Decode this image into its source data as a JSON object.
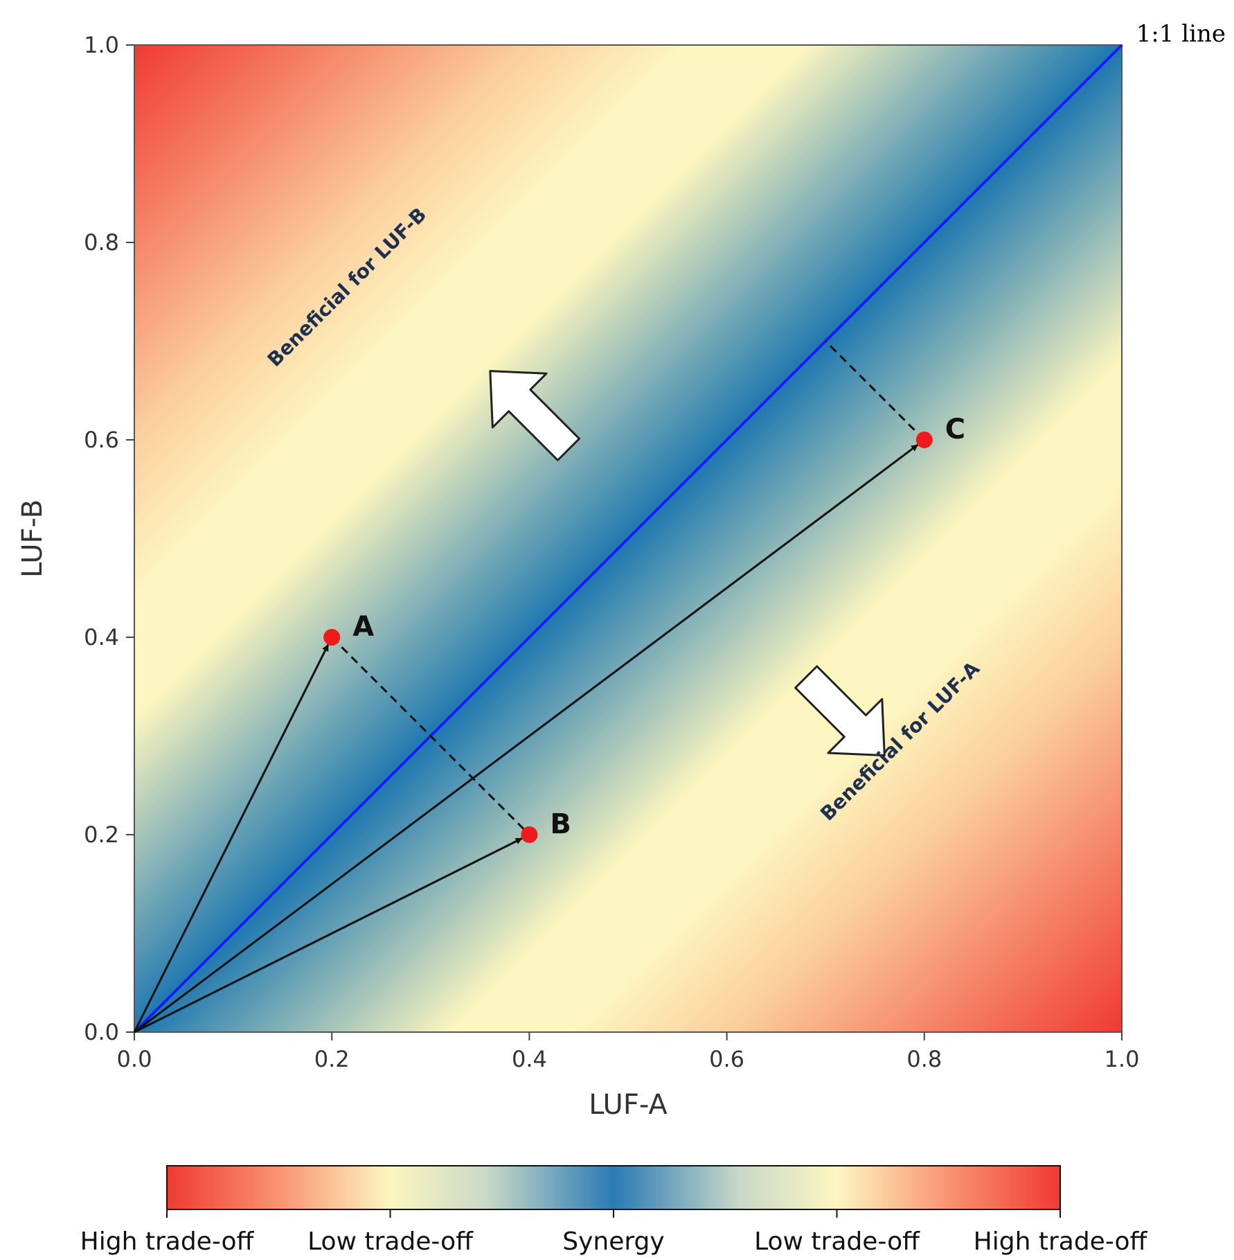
{
  "chart_data": {
    "type": "scatter",
    "xlabel": "LUF-A",
    "ylabel": "LUF-B",
    "xlim": [
      0.0,
      1.0
    ],
    "ylim": [
      0.0,
      1.0
    ],
    "xticks": [
      "0.0",
      "0.2",
      "0.4",
      "0.6",
      "0.8",
      "1.0"
    ],
    "yticks": [
      "0.0",
      "0.2",
      "0.4",
      "0.6",
      "0.8",
      "1.0"
    ],
    "xtick_values": [
      0.0,
      0.2,
      0.4,
      0.6,
      0.8,
      1.0
    ],
    "ytick_values": [
      0.0,
      0.2,
      0.4,
      0.6,
      0.8,
      1.0
    ],
    "points": [
      {
        "label": "A",
        "x": 0.2,
        "y": 0.4
      },
      {
        "label": "B",
        "x": 0.4,
        "y": 0.2
      },
      {
        "label": "C",
        "x": 0.8,
        "y": 0.6
      }
    ],
    "reference_line": {
      "label": "1:1 line",
      "from": [
        0.0,
        0.0
      ],
      "to": [
        1.0,
        1.0
      ],
      "color": "#1a1aff"
    },
    "arrows_from_origin": [
      "A",
      "B",
      "C"
    ],
    "dashed_links": [
      {
        "from": [
          0.2,
          0.4
        ],
        "to": [
          0.4,
          0.2
        ]
      },
      {
        "from": [
          0.8,
          0.6
        ],
        "to": [
          0.7,
          0.7
        ]
      }
    ],
    "region_labels": [
      {
        "text": "Beneficial for LUF-B",
        "x": 0.22,
        "y": 0.75,
        "angle": 45
      },
      {
        "text": "Beneficial for LUF-A",
        "x": 0.78,
        "y": 0.29,
        "angle": 45
      }
    ],
    "background": "diverging gradient by distance from 1:1 line",
    "colormap": [
      "#f03a32",
      "#fdf6c0",
      "#2a7ab5",
      "#fdf6c0",
      "#f03a32"
    ],
    "colorbar": {
      "labels": [
        "High trade-off",
        "Low trade-off",
        "Synergy",
        "Low trade-off",
        "High trade-off"
      ]
    },
    "point_color": "#ee1b1b"
  }
}
